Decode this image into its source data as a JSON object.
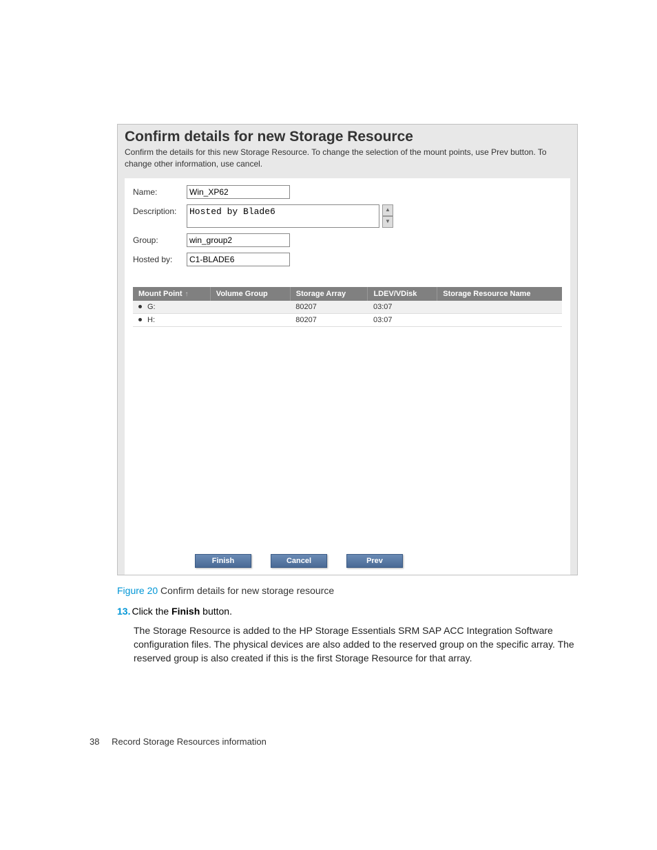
{
  "panel": {
    "title": "Confirm details for new Storage Resource",
    "subtitle": "Confirm the details for this new Storage Resource. To change the selection of the mount points, use Prev button. To change other information, use cancel."
  },
  "form": {
    "name_label": "Name:",
    "name_value": "Win_XP62",
    "description_label": "Description:",
    "description_value": "Hosted by Blade6",
    "group_label": "Group:",
    "group_value": "win_group2",
    "hostedby_label": "Hosted by:",
    "hostedby_value": "C1-BLADE6"
  },
  "table": {
    "headers": {
      "mount_point": "Mount Point",
      "volume_group": "Volume Group",
      "storage_array": "Storage Array",
      "ldev_vdisk": "LDEV/VDisk",
      "resource_name": "Storage Resource Name"
    },
    "sort_indicator": "↑",
    "rows": [
      {
        "mount": "G:",
        "vg": "",
        "array": "80207",
        "ldev": "03:07",
        "rname": ""
      },
      {
        "mount": "H:",
        "vg": "",
        "array": "80207",
        "ldev": "03:07",
        "rname": ""
      }
    ]
  },
  "buttons": {
    "finish": "Finish",
    "cancel": "Cancel",
    "prev": "Prev"
  },
  "caption": {
    "label": "Figure 20",
    "text": "  Confirm details for new storage resource"
  },
  "step": {
    "num": "13.",
    "text_prefix": "Click the ",
    "text_bold": "Finish",
    "text_suffix": " button."
  },
  "body": "The Storage Resource is added to the HP Storage Essentials SRM SAP ACC Integration Software configuration files. The physical devices are also added to the reserved group on the specific array. The reserved group is also created if this is the first Storage Resource for that array.",
  "footer": {
    "page": "38",
    "section": "Record Storage Resources information"
  },
  "colors": {
    "accent": "#0096d6",
    "table_header_bg": "#808080",
    "button_bg": "#5a7aa5",
    "panel_bg": "#e8e8e8"
  }
}
